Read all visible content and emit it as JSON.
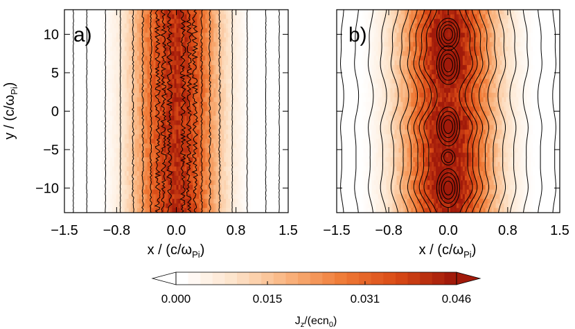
{
  "chart_data": {
    "type": "heatmap",
    "colormap_stops": [
      "#ffffff",
      "#fde2c8",
      "#f9b27c",
      "#ef7a36",
      "#d94a16",
      "#a11a0a"
    ],
    "panels": [
      {
        "id": "a",
        "label": "a)",
        "xlim": [
          -1.5,
          1.5
        ],
        "ylim": [
          -13.2,
          13.2
        ],
        "xticks": [
          "−1.5",
          "−0.8",
          "0.0",
          "0.8",
          "1.5"
        ],
        "xtick_values": [
          -1.5,
          -0.8,
          0.0,
          0.8,
          1.5
        ],
        "yticks": [
          "10",
          "5",
          "0",
          "−5",
          "−10"
        ],
        "ytick_values": [
          10,
          5,
          0,
          -5,
          -10
        ],
        "xlabel": "x / (c/ω",
        "xlabel_sub": "Pi",
        "xlabel_end": ")",
        "ylabel": "y / (c/ω",
        "ylabel_sub": "Pi",
        "ylabel_end": ")",
        "current_profile": {
          "peak": 0.046,
          "sigma": 0.42,
          "x": [
            -1.5,
            -1.2,
            -0.9,
            -0.6,
            -0.3,
            0.0,
            0.3,
            0.6,
            0.9,
            1.2,
            1.5
          ]
        },
        "contour_x": [
          -1.38,
          -1.2,
          -0.95,
          -0.75,
          -0.58,
          -0.45,
          -0.34,
          -0.25,
          -0.17,
          -0.09,
          0.09,
          0.17,
          0.25,
          0.34,
          0.45,
          0.58,
          0.75,
          0.95,
          1.2,
          1.38
        ]
      },
      {
        "id": "b",
        "label": "b)",
        "xlim": [
          -1.5,
          1.5
        ],
        "ylim": [
          -13.2,
          13.2
        ],
        "xticks": [
          "−1.5",
          "−0.8",
          "0.0",
          "0.8",
          "1.5"
        ],
        "xtick_values": [
          -1.5,
          -0.8,
          0.0,
          0.8,
          1.5
        ],
        "xlabel": "x / (c/ω",
        "xlabel_sub": "Pi",
        "xlabel_end": ")",
        "islands_y": [
          10,
          6,
          -2,
          -6,
          -10
        ],
        "island_strength": [
          0.8,
          1.0,
          1.0,
          0.6,
          1.0
        ],
        "current_profile": {
          "peak": 0.046,
          "sigma": 0.48
        },
        "contour_x": [
          -1.4,
          -1.2,
          -1.0,
          -0.82,
          -0.66,
          -0.52,
          -0.4,
          -0.3,
          -0.21,
          -0.13,
          0.13,
          0.21,
          0.3,
          0.4,
          0.52,
          0.66,
          0.82,
          1.0,
          1.2,
          1.4
        ]
      }
    ],
    "colorbar": {
      "min": 0.0,
      "max": 0.046,
      "tick_values": [
        0.0,
        0.015,
        0.031,
        0.046
      ],
      "ticks": [
        "0.000",
        "0.015",
        "0.031",
        "0.046"
      ],
      "title": "J",
      "title_sub": "z",
      "title_mid": "/(ecn",
      "title_sub2": "0",
      "title_end": ")",
      "n_levels": 23
    }
  }
}
